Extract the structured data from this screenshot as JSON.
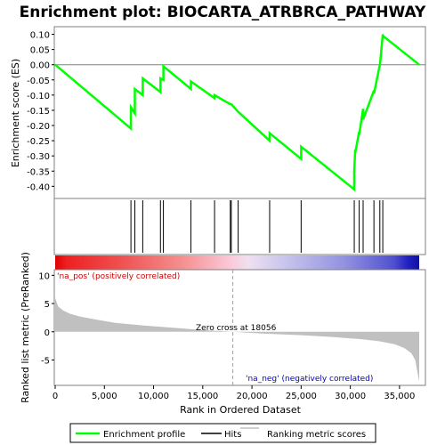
{
  "chart_data": {
    "type": "line",
    "title": "Enrichment plot: BIOCARTA_ATRBRCA_PATHWAY",
    "x_axis": {
      "label": "Rank in Ordered Dataset",
      "range": [
        0,
        37000
      ],
      "ticks": [
        0,
        5000,
        10000,
        15000,
        20000,
        25000,
        30000,
        35000
      ],
      "tick_labels": [
        "0",
        "5,000",
        "10,000",
        "15,000",
        "20,000",
        "25,000",
        "30,000",
        "35,000"
      ]
    },
    "es_panel": {
      "ylabel": "Enrichment score (ES)",
      "ylim": [
        -0.44,
        0.125
      ],
      "ticks": [
        0.1,
        0.05,
        0.0,
        -0.05,
        -0.1,
        -0.15,
        -0.2,
        -0.25,
        -0.3,
        -0.35,
        -0.4
      ],
      "tick_labels": [
        "0.10",
        "0.05",
        "0.00",
        "-0.05",
        "-0.10",
        "-0.15",
        "-0.20",
        "-0.25",
        "-0.30",
        "-0.35",
        "-0.40"
      ],
      "series": [
        {
          "name": "Enrichment profile",
          "color": "#00ff00",
          "x": [
            0,
            7700,
            7700,
            8100,
            8100,
            8900,
            8900,
            10700,
            10700,
            11000,
            11000,
            13800,
            13800,
            16200,
            16200,
            17800,
            17900,
            18600,
            21800,
            21800,
            25000,
            25000,
            30400,
            30400,
            30500,
            30500,
            30900,
            30900,
            31300,
            31300,
            32400,
            32400,
            33000,
            33000,
            33300,
            33300,
            37000
          ],
          "y": [
            0.0,
            -0.21,
            -0.14,
            -0.16,
            -0.08,
            -0.1,
            -0.045,
            -0.09,
            -0.045,
            -0.05,
            -0.005,
            -0.08,
            -0.055,
            -0.11,
            -0.1,
            -0.13,
            -0.13,
            -0.155,
            -0.25,
            -0.225,
            -0.31,
            -0.27,
            -0.41,
            -0.35,
            -0.28,
            -0.29,
            -0.22,
            -0.23,
            -0.145,
            -0.18,
            -0.085,
            -0.095,
            -0.0,
            -0.005,
            0.1,
            0.095,
            0.0
          ]
        }
      ]
    },
    "hits_panel": {
      "positions": [
        7700,
        8100,
        8900,
        10700,
        11000,
        13800,
        16200,
        17800,
        17900,
        18600,
        21800,
        25000,
        30400,
        30900,
        31300,
        32400,
        33000,
        33300
      ]
    },
    "ranked_panel": {
      "ylabel": "Ranked list metric (PreRanked)",
      "ylim": [
        -9.5,
        11
      ],
      "ticks": [
        10,
        5,
        0,
        -5
      ],
      "tick_labels": [
        "10",
        "5",
        "0",
        "-5"
      ],
      "curve_x": [
        0,
        300,
        800,
        1500,
        2500,
        4000,
        6000,
        9000,
        12000,
        15000,
        18056,
        21000,
        25000,
        28000,
        31000,
        33000,
        34500,
        35500,
        36200,
        36600,
        36800,
        37000
      ],
      "curve_y": [
        6.0,
        4.5,
        3.8,
        3.2,
        2.7,
        2.2,
        1.6,
        1.1,
        0.7,
        0.3,
        0.0,
        -0.3,
        -0.6,
        -0.9,
        -1.3,
        -1.7,
        -2.2,
        -2.9,
        -3.8,
        -5.0,
        -7.0,
        -8.8
      ],
      "zero_cross": 18056,
      "zero_cross_label": "Zero cross at 18056",
      "pos_label": "'na_pos' (positively correlated)",
      "neg_label": "'na_neg' (negatively correlated)",
      "pos_label_color": "#cc0000",
      "neg_label_color": "#0000cc"
    },
    "legend": {
      "items": [
        {
          "label": "Enrichment profile",
          "color": "#00ff00"
        },
        {
          "label": "Hits",
          "color": "#000000"
        },
        {
          "label": "Ranking metric scores",
          "color": "#c0c0c0"
        }
      ]
    }
  }
}
